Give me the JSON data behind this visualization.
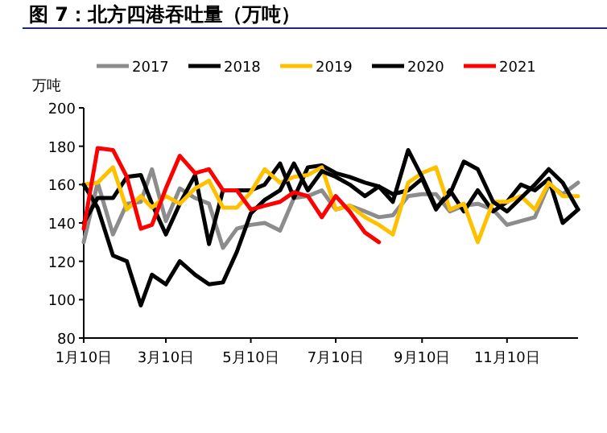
{
  "chart_data": {
    "type": "line",
    "title": "图 7：北方四港吞吐量（万吨）",
    "ylabel": "万吨",
    "legend": "top",
    "ylim": [
      80,
      200
    ],
    "yticks": [
      80,
      100,
      120,
      140,
      160,
      180,
      200
    ],
    "xlim": [
      "--01-10",
      "--12-31"
    ],
    "xticks": [
      {
        "value": "--01-10",
        "label": "1月10日"
      },
      {
        "value": "--03-10",
        "label": "3月10日"
      },
      {
        "value": "--05-10",
        "label": "5月10日"
      },
      {
        "value": "--07-10",
        "label": "7月10日"
      },
      {
        "value": "--09-10",
        "label": "9月10日"
      },
      {
        "value": "--11-10",
        "label": "11月10日"
      }
    ],
    "x": [
      "--01-10",
      "--01-20",
      "--01-31",
      "--02-10",
      "--02-20",
      "--02-28",
      "--03-10",
      "--03-20",
      "--03-31",
      "--04-10",
      "--04-20",
      "--04-30",
      "--05-10",
      "--05-20",
      "--05-31",
      "--06-10",
      "--06-20",
      "--06-30",
      "--07-10",
      "--07-20",
      "--07-31",
      "--08-10",
      "--08-20",
      "--08-31",
      "--09-10",
      "--09-20",
      "--09-30",
      "--10-10",
      "--10-20",
      "--10-31",
      "--11-10",
      "--11-20",
      "--11-30",
      "--12-10",
      "--12-20",
      "--12-31"
    ],
    "series": [
      {
        "name": "2017",
        "color": "#8c8c8c",
        "values": [
          130,
          161,
          134,
          150,
          151,
          168,
          141,
          158,
          153,
          150,
          127,
          137,
          139,
          140,
          136,
          153,
          154,
          157,
          147,
          149,
          146,
          143,
          144,
          154,
          155,
          155,
          146,
          149,
          150,
          147,
          139,
          141,
          143,
          160,
          155,
          161
        ]
      },
      {
        "name": "2018",
        "color": "#000000",
        "values": [
          140,
          153,
          153,
          164,
          165,
          150,
          134,
          150,
          165,
          129,
          157,
          157,
          157,
          160,
          171,
          153,
          169,
          170,
          166,
          164,
          161,
          159,
          155,
          157,
          163,
          147,
          157,
          146,
          157,
          146,
          151,
          160,
          157,
          163,
          140,
          147
        ]
      },
      {
        "name": "2019",
        "color": "#ffc000",
        "values": [
          160,
          161,
          169,
          147,
          154,
          148,
          154,
          150,
          158,
          162,
          148,
          148,
          156,
          168,
          161,
          164,
          165,
          169,
          147,
          149,
          143,
          139,
          134,
          161,
          166,
          169,
          147,
          150,
          130,
          151,
          151,
          154,
          147,
          161,
          154,
          154
        ]
      },
      {
        "name": "2020",
        "color": "#000000",
        "values": [
          160,
          148,
          123,
          120,
          97,
          113,
          108,
          120,
          113,
          108,
          109,
          125,
          145,
          152,
          157,
          171,
          157,
          167,
          164,
          160,
          154,
          159,
          151,
          178,
          164,
          148,
          155,
          172,
          168,
          151,
          146,
          153,
          160,
          168,
          161,
          147
        ]
      },
      {
        "name": "2021",
        "color": "#ff0000",
        "values": [
          137,
          179,
          178,
          164,
          137,
          139,
          158,
          175,
          166,
          168,
          157,
          157,
          147,
          149,
          151,
          156,
          154,
          143,
          154,
          146,
          135,
          130,
          null,
          null,
          null,
          null,
          null,
          null,
          null,
          null,
          null,
          null,
          null,
          null,
          null,
          null
        ]
      }
    ]
  }
}
